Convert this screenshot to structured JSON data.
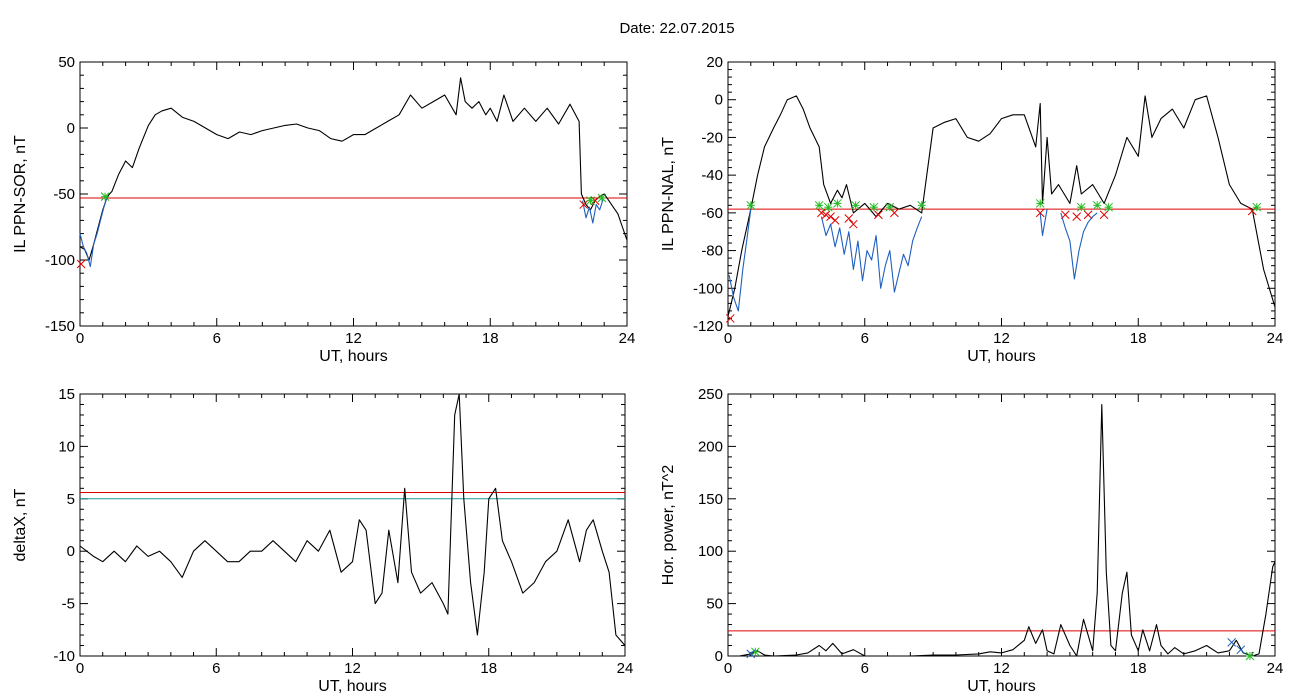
{
  "figure": {
    "title": "Date:  22.07.2015"
  },
  "chart_data": [
    {
      "id": "sor",
      "type": "line",
      "xlabel": "UT, hours",
      "ylabel": "IL PPN-SOR, nT",
      "xlim": [
        0,
        24
      ],
      "ylim": [
        -150,
        50
      ],
      "xticks": [
        0,
        6,
        12,
        18,
        24
      ],
      "yticks": [
        -150,
        -100,
        -50,
        0,
        50
      ],
      "threshold": {
        "value": -53,
        "color": "#e00000"
      },
      "series": [
        {
          "name": "",
          "color": "#000000",
          "x": [
            0,
            0.2,
            0.4,
            0.6,
            0.8,
            1.0,
            1.2,
            1.4,
            1.7,
            2.0,
            2.3,
            2.6,
            3.0,
            3.3,
            3.6,
            4.0,
            4.5,
            5.0,
            5.5,
            6.0,
            6.5,
            7.0,
            7.5,
            8.0,
            8.5,
            9.0,
            9.5,
            10.0,
            10.5,
            11.0,
            11.5,
            12.0,
            12.5,
            13.0,
            13.5,
            14.0,
            14.5,
            15.0,
            15.5,
            16.0,
            16.5,
            16.7,
            16.9,
            17.2,
            17.5,
            17.8,
            18.0,
            18.3,
            18.6,
            19.0,
            19.5,
            20.0,
            20.5,
            21.0,
            21.5,
            21.9,
            22.0,
            22.2,
            22.4,
            22.6,
            22.8,
            23.0,
            23.2,
            23.4,
            23.6,
            23.8,
            24.0
          ],
          "y": [
            -90,
            -92,
            -100,
            -88,
            -75,
            -62,
            -52,
            -48,
            -35,
            -25,
            -30,
            -15,
            2,
            10,
            13,
            15,
            8,
            5,
            0,
            -5,
            -8,
            -3,
            -5,
            -2,
            0,
            2,
            3,
            0,
            -2,
            -8,
            -10,
            -5,
            -5,
            0,
            5,
            10,
            25,
            15,
            20,
            25,
            10,
            38,
            20,
            15,
            20,
            10,
            15,
            5,
            25,
            5,
            15,
            5,
            15,
            3,
            18,
            5,
            -50,
            -58,
            -62,
            -55,
            -52,
            -50,
            -55,
            -60,
            -65,
            -75,
            -85
          ]
        },
        {
          "name": "",
          "color": "#1f5fbf",
          "x": [
            0,
            0.15,
            0.3,
            0.45,
            0.6,
            0.75,
            0.9,
            1.05,
            1.2
          ],
          "y": [
            -80,
            -90,
            -95,
            -105,
            -88,
            -80,
            -70,
            -60,
            -52
          ]
        },
        {
          "name": "",
          "color": "#1f5fbf",
          "x": [
            22.05,
            22.2,
            22.35,
            22.5,
            22.65,
            22.8,
            22.95
          ],
          "y": [
            -55,
            -68,
            -60,
            -72,
            -58,
            -62,
            -54
          ]
        }
      ],
      "markers": [
        {
          "type": "x",
          "color": "#e00000",
          "x": [
            0.05,
            22.1,
            22.6
          ],
          "y": [
            -103,
            -58,
            -55
          ]
        },
        {
          "type": "star",
          "color": "#22bb22",
          "x": [
            1.1,
            22.4,
            22.9
          ],
          "y": [
            -52,
            -55,
            -53
          ]
        }
      ]
    },
    {
      "id": "nal",
      "type": "line",
      "xlabel": "UT, hours",
      "ylabel": "IL PPN-NAL, nT",
      "xlim": [
        0,
        24
      ],
      "ylim": [
        -120,
        20
      ],
      "xticks": [
        0,
        6,
        12,
        18,
        24
      ],
      "yticks": [
        -120,
        -100,
        -80,
        -60,
        -40,
        -20,
        0,
        20
      ],
      "threshold": {
        "value": -58,
        "color": "#e00000"
      },
      "series": [
        {
          "name": "",
          "color": "#000000",
          "x": [
            0,
            0.3,
            0.6,
            1.0,
            1.3,
            1.6,
            2.0,
            2.3,
            2.6,
            3.0,
            3.3,
            3.6,
            4.0,
            4.2,
            4.5,
            4.8,
            5.0,
            5.2,
            5.5,
            6.0,
            6.5,
            7.0,
            7.5,
            8.0,
            8.5,
            9.0,
            9.5,
            10.0,
            10.5,
            11.0,
            11.5,
            12.0,
            12.5,
            13.0,
            13.5,
            13.7,
            13.8,
            14.0,
            14.2,
            14.5,
            15.0,
            15.3,
            15.5,
            16.0,
            16.5,
            17.0,
            17.5,
            18.0,
            18.3,
            18.6,
            19.0,
            19.5,
            20.0,
            20.5,
            21.0,
            21.5,
            22.0,
            22.5,
            23.0,
            23.5,
            24.0
          ],
          "y": [
            -115,
            -100,
            -80,
            -58,
            -40,
            -25,
            -15,
            -8,
            0,
            2,
            -5,
            -15,
            -25,
            -45,
            -55,
            -48,
            -52,
            -45,
            -60,
            -55,
            -62,
            -55,
            -58,
            -56,
            -60,
            -15,
            -12,
            -10,
            -20,
            -22,
            -18,
            -10,
            -8,
            -8,
            -25,
            -2,
            -55,
            -20,
            -50,
            -45,
            -55,
            -35,
            -50,
            -45,
            -55,
            -40,
            -20,
            -30,
            2,
            -20,
            -10,
            -5,
            -15,
            0,
            2,
            -20,
            -45,
            -55,
            -58,
            -90,
            -110
          ]
        },
        {
          "name": "",
          "color": "#1f5fbf",
          "x": [
            0.05,
            0.25,
            0.45,
            0.65,
            0.85,
            1.0
          ],
          "y": [
            -93,
            -105,
            -112,
            -90,
            -72,
            -58
          ]
        },
        {
          "name": "",
          "color": "#1f5fbf",
          "x": [
            4.1,
            4.3,
            4.5,
            4.7,
            4.9,
            5.1,
            5.3,
            5.5,
            5.7,
            5.9,
            6.1,
            6.3,
            6.5,
            6.7,
            6.9,
            7.1,
            7.3,
            7.5,
            7.7,
            7.9,
            8.1,
            8.3,
            8.5
          ],
          "y": [
            -62,
            -72,
            -66,
            -78,
            -68,
            -82,
            -70,
            -90,
            -75,
            -96,
            -80,
            -85,
            -72,
            -100,
            -88,
            -80,
            -102,
            -92,
            -82,
            -88,
            -75,
            -68,
            -62
          ]
        },
        {
          "name": "",
          "color": "#1f5fbf",
          "x": [
            13.7,
            13.8,
            13.9,
            14.0
          ],
          "y": [
            -60,
            -72,
            -65,
            -58
          ]
        },
        {
          "name": "",
          "color": "#1f5fbf",
          "x": [
            14.6,
            14.8,
            15.0,
            15.2,
            15.4,
            15.6,
            15.8,
            16.0,
            16.2
          ],
          "y": [
            -60,
            -68,
            -75,
            -95,
            -80,
            -70,
            -65,
            -62,
            -60
          ]
        }
      ],
      "markers": [
        {
          "type": "x",
          "color": "#e00000",
          "x": [
            0.1,
            4.1,
            4.3,
            4.5,
            4.7,
            5.3,
            5.5,
            6.6,
            7.3,
            13.7,
            14.8,
            15.3,
            15.8,
            16.5,
            23.0
          ],
          "y": [
            -116,
            -60,
            -61,
            -62,
            -64,
            -63,
            -66,
            -61,
            -60,
            -60,
            -61,
            -62,
            -61,
            -61,
            -59
          ]
        },
        {
          "type": "star",
          "color": "#22bb22",
          "x": [
            1.0,
            4.0,
            4.4,
            4.8,
            5.6,
            6.4,
            7.1,
            8.5,
            13.7,
            15.5,
            16.2,
            16.7,
            23.2
          ],
          "y": [
            -56,
            -56,
            -57,
            -55,
            -56,
            -57,
            -57,
            -56,
            -55,
            -57,
            -56,
            -57,
            -57
          ]
        }
      ]
    },
    {
      "id": "deltax",
      "type": "line",
      "xlabel": "UT, hours",
      "ylabel": "deltaX, nT",
      "xlim": [
        0,
        24
      ],
      "ylim": [
        -10,
        15
      ],
      "xticks": [
        0,
        6,
        12,
        18,
        24
      ],
      "yticks": [
        -10,
        -5,
        0,
        5,
        10,
        15
      ],
      "thresholds": [
        {
          "value": 5.6,
          "color": "#e00000"
        },
        {
          "value": 5.0,
          "color": "#1a9a9a"
        }
      ],
      "series": [
        {
          "name": "",
          "color": "#000000",
          "x": [
            0,
            0.3,
            0.6,
            1.0,
            1.5,
            2.0,
            2.5,
            3.0,
            3.5,
            4.0,
            4.5,
            5.0,
            5.5,
            6.0,
            6.5,
            7.0,
            7.5,
            8.0,
            8.5,
            9.0,
            9.5,
            10.0,
            10.5,
            11.0,
            11.5,
            12.0,
            12.3,
            12.6,
            13.0,
            13.3,
            13.6,
            14.0,
            14.3,
            14.6,
            15.0,
            15.5,
            16.0,
            16.2,
            16.5,
            16.7,
            16.9,
            17.2,
            17.5,
            17.8,
            18.0,
            18.3,
            18.6,
            19.0,
            19.5,
            20.0,
            20.5,
            21.0,
            21.5,
            22.0,
            22.3,
            22.6,
            23.0,
            23.3,
            23.6,
            24.0
          ],
          "y": [
            0.5,
            0,
            -0.5,
            -1,
            0,
            -1,
            0.5,
            -0.5,
            0,
            -1,
            -2.5,
            0,
            1,
            0,
            -1,
            -1,
            0,
            0,
            1,
            0,
            -1,
            1,
            0,
            2,
            -2,
            -1,
            3,
            2,
            -5,
            -4,
            2,
            -3,
            6,
            -2,
            -4,
            -3,
            -5,
            -6,
            13,
            15,
            5,
            -3,
            -8,
            -2,
            5,
            6,
            1,
            -1,
            -4,
            -3,
            -1,
            0,
            3,
            -1,
            2,
            3,
            0,
            -2,
            -8,
            -9
          ]
        }
      ],
      "markers": []
    },
    {
      "id": "power",
      "type": "line",
      "xlabel": "UT, hours",
      "ylabel": "Hor. power, nT^2",
      "xlim": [
        0,
        24
      ],
      "ylim": [
        0,
        250
      ],
      "xticks": [
        0,
        6,
        12,
        18,
        24
      ],
      "yticks": [
        0,
        50,
        100,
        150,
        200,
        250
      ],
      "threshold": {
        "value": 24,
        "color": "#e00000"
      },
      "series": [
        {
          "name": "",
          "color": "#000000",
          "x": [
            0,
            0.5,
            1.0,
            1.3,
            1.6,
            2.0,
            3.0,
            3.5,
            4.0,
            4.3,
            4.6,
            5.0,
            5.5,
            6.0,
            7.0,
            8.0,
            9.0,
            10.0,
            11.0,
            11.5,
            12.0,
            12.5,
            13.0,
            13.2,
            13.5,
            13.8,
            14.0,
            14.3,
            14.6,
            15.0,
            15.3,
            15.6,
            16.0,
            16.2,
            16.4,
            16.6,
            16.8,
            17.0,
            17.3,
            17.5,
            17.7,
            18.0,
            18.2,
            18.5,
            18.8,
            19.0,
            19.3,
            19.6,
            20.0,
            20.5,
            21.0,
            21.5,
            22.0,
            22.3,
            22.6,
            23.0,
            23.3,
            23.6,
            23.9,
            24.0
          ],
          "y": [
            0,
            0,
            2,
            5,
            1,
            0,
            1,
            3,
            10,
            5,
            12,
            2,
            6,
            0,
            0,
            0,
            1,
            1,
            2,
            4,
            3,
            6,
            15,
            28,
            12,
            25,
            5,
            2,
            30,
            10,
            0,
            35,
            5,
            60,
            240,
            80,
            10,
            5,
            60,
            80,
            20,
            5,
            25,
            5,
            30,
            10,
            2,
            8,
            2,
            5,
            10,
            3,
            5,
            15,
            3,
            0,
            2,
            40,
            85,
            90
          ]
        }
      ],
      "markers": [
        {
          "type": "star",
          "color": "#22bb22",
          "x": [
            1.2,
            22.9
          ],
          "y": [
            4,
            0
          ]
        },
        {
          "type": "x",
          "color": "#1f5fbf",
          "x": [
            1.0,
            22.1,
            22.5
          ],
          "y": [
            2,
            13,
            6
          ]
        }
      ]
    }
  ]
}
